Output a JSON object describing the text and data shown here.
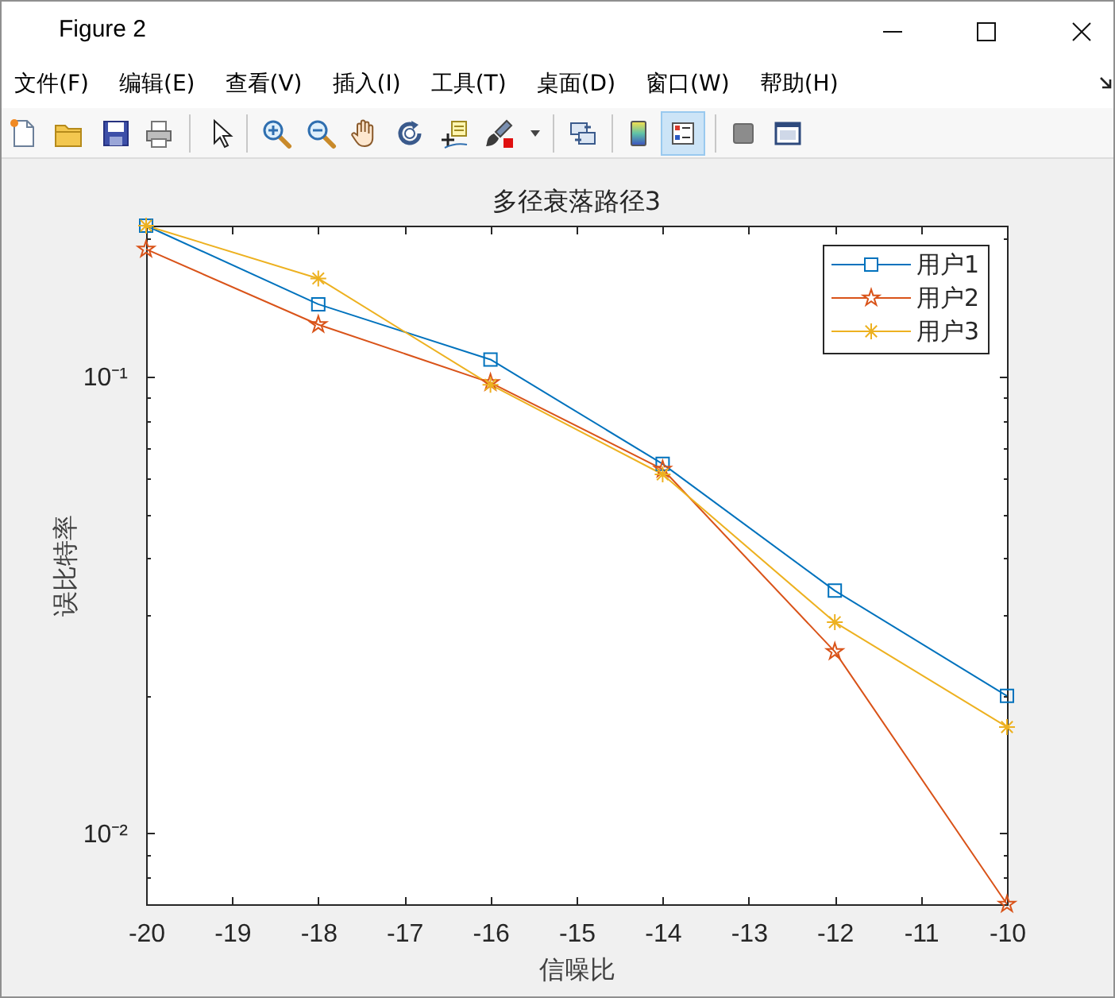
{
  "chart_data": {
    "type": "line",
    "title": "多径衰落路径3",
    "xlabel": "信噪比",
    "ylabel": "误比特率",
    "x": [
      -20,
      -18,
      -16,
      -14,
      -12,
      -10
    ],
    "series": [
      {
        "name": "用户1",
        "color": "#0072bd",
        "marker": "square",
        "values": [
          0.214,
          0.144,
          0.109,
          0.0644,
          0.034,
          0.02
        ]
      },
      {
        "name": "用户2",
        "color": "#d95319",
        "marker": "star",
        "values": [
          0.19,
          0.13,
          0.097,
          0.0627,
          0.025,
          0.007
        ]
      },
      {
        "name": "用户3",
        "color": "#edb120",
        "marker": "cross",
        "values": [
          0.214,
          0.164,
          0.096,
          0.0611,
          0.029,
          0.0171
        ]
      }
    ],
    "xlim": [
      -20,
      -10
    ],
    "xticks": [
      -20,
      -19,
      -18,
      -17,
      -16,
      -15,
      -14,
      -13,
      -12,
      -11,
      -10
    ],
    "ylim": [
      0.007,
      0.214
    ],
    "log": "y",
    "yticks": [
      {
        "value": 0.008,
        "label": null
      },
      {
        "value": 0.009,
        "label": null
      },
      {
        "value": 0.01,
        "label": "10⁻²"
      },
      {
        "value": 0.02,
        "label": null
      },
      {
        "value": 0.03,
        "label": null
      },
      {
        "value": 0.04,
        "label": null
      },
      {
        "value": 0.05,
        "label": null
      },
      {
        "value": 0.06,
        "label": null
      },
      {
        "value": 0.07,
        "label": null
      },
      {
        "value": 0.08,
        "label": null
      },
      {
        "value": 0.09,
        "label": null
      },
      {
        "value": 0.1,
        "label": "10⁻¹"
      },
      {
        "value": 0.2,
        "label": null
      }
    ],
    "legend": "top right",
    "annotations": [
      "Figure 2",
      "文件(F)",
      "编辑(E)",
      "查看(V)",
      "插入(I)",
      "工具(T)",
      "桌面(D)",
      "窗口(W)",
      "帮助(H)"
    ]
  }
}
